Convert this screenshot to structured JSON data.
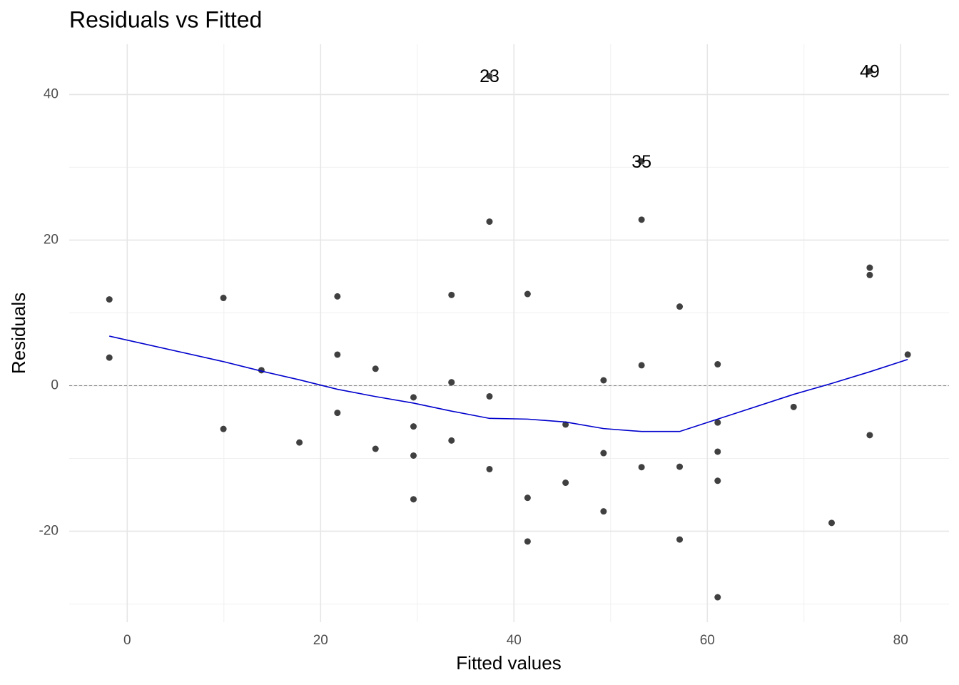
{
  "chart_data": {
    "type": "scatter",
    "title": "Residuals vs Fitted",
    "xlabel": "Fitted values",
    "ylabel": "Residuals",
    "xlim": [
      -6,
      85
    ],
    "ylim": [
      -32.5,
      46.9
    ],
    "xticks": [
      0,
      20,
      40,
      60,
      80
    ],
    "yticks": [
      -20,
      0,
      20,
      40
    ],
    "grid": true,
    "reference_line": 0,
    "series": [
      {
        "name": "Residuals",
        "kind": "points",
        "color": "#404040",
        "x": [
          -1.85,
          -1.85,
          9.95,
          9.95,
          13.88,
          17.81,
          21.74,
          21.74,
          21.74,
          25.68,
          25.68,
          29.61,
          29.61,
          29.61,
          29.61,
          33.54,
          33.54,
          33.54,
          33.54,
          37.47,
          37.47,
          37.47,
          37.47,
          41.41,
          41.41,
          41.41,
          45.34,
          45.34,
          49.27,
          49.27,
          49.27,
          53.2,
          53.2,
          53.2,
          53.2,
          57.14,
          57.14,
          57.14,
          61.07,
          61.07,
          61.07,
          61.07,
          61.07,
          68.93,
          72.86,
          76.8,
          76.8,
          76.8,
          76.8,
          80.73
        ],
        "values": [
          3.85,
          11.85,
          -5.95,
          12.05,
          2.12,
          -7.81,
          -3.74,
          4.26,
          12.26,
          -8.68,
          2.32,
          -15.61,
          -9.61,
          -5.61,
          -1.61,
          -7.54,
          0.46,
          0.46,
          12.46,
          -11.47,
          -1.47,
          22.53,
          42.53,
          -21.41,
          -15.41,
          12.59,
          -13.34,
          -5.34,
          -17.27,
          -9.27,
          0.73,
          -11.2,
          2.8,
          22.8,
          30.8,
          -21.14,
          -11.14,
          10.86,
          -29.07,
          -13.07,
          -9.07,
          -5.07,
          2.93,
          -2.93,
          -18.86,
          -6.8,
          15.2,
          16.2,
          43.2,
          4.27
        ]
      },
      {
        "name": "Smooth",
        "kind": "line",
        "color": "#0000cd",
        "x": [
          -1.85,
          9.95,
          13.88,
          17.81,
          21.74,
          25.68,
          29.61,
          33.54,
          37.47,
          41.41,
          45.34,
          49.27,
          53.2,
          57.14,
          61.07,
          68.93,
          72.86,
          76.8,
          80.73
        ],
        "values": [
          6.8,
          3.3,
          2.0,
          0.8,
          -0.5,
          -1.5,
          -2.4,
          -3.5,
          -4.5,
          -4.6,
          -5.0,
          -5.9,
          -6.3,
          -6.3,
          -4.6,
          -1.2,
          0.3,
          1.9,
          3.6
        ]
      }
    ],
    "annotations": [
      {
        "text": "23",
        "x": 37.47,
        "y": 42.53
      },
      {
        "text": "35",
        "x": 53.2,
        "y": 30.8
      },
      {
        "text": "49",
        "x": 76.8,
        "y": 43.2
      }
    ]
  }
}
